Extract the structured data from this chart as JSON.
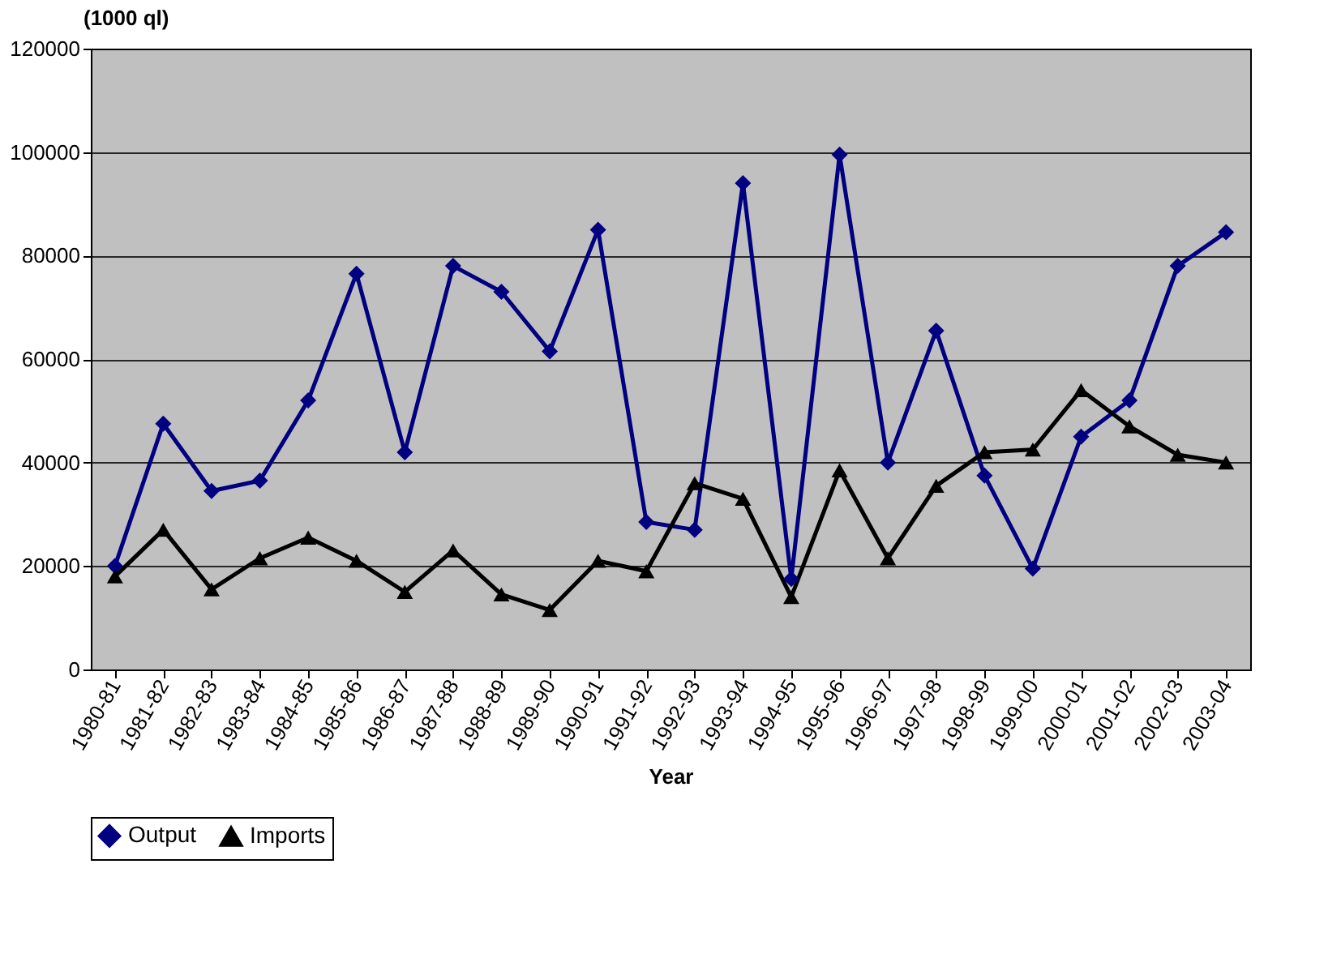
{
  "chart_data": {
    "type": "line",
    "ylabel": "(1000 ql)",
    "xlabel": "Year",
    "categories": [
      "1980-81",
      "1981-82",
      "1982-83",
      "1983-84",
      "1984-85",
      "1985-86",
      "1986-87",
      "1987-88",
      "1988-89",
      "1989-90",
      "1990-91",
      "1991-92",
      "1992-93",
      "1993-94",
      "1994-95",
      "1995-96",
      "1996-97",
      "1997-98",
      "1998-99",
      "1999-00",
      "2000-01",
      "2001-02",
      "2002-03",
      "2003-04"
    ],
    "series": [
      {
        "name": "Output",
        "color": "#000080",
        "marker": "diamond",
        "values": [
          20000,
          47500,
          34500,
          36500,
          52000,
          76500,
          42000,
          78000,
          73000,
          61500,
          85000,
          28500,
          27000,
          94000,
          17500,
          99500,
          40000,
          65500,
          37500,
          19500,
          45000,
          52000,
          78000,
          84500
        ]
      },
      {
        "name": "Imports",
        "color": "#000000",
        "marker": "triangle",
        "values": [
          18000,
          27000,
          15500,
          21500,
          25500,
          21000,
          15000,
          23000,
          14500,
          11500,
          21000,
          19000,
          36000,
          33000,
          14000,
          38500,
          21500,
          35500,
          42000,
          42500,
          54000,
          47000,
          41500,
          40000
        ]
      }
    ],
    "ylim": [
      0,
      120000
    ],
    "yticks": [
      0,
      20000,
      40000,
      60000,
      80000,
      100000,
      120000
    ],
    "grid": "y",
    "legend": "bottom",
    "line_style": "solid"
  }
}
